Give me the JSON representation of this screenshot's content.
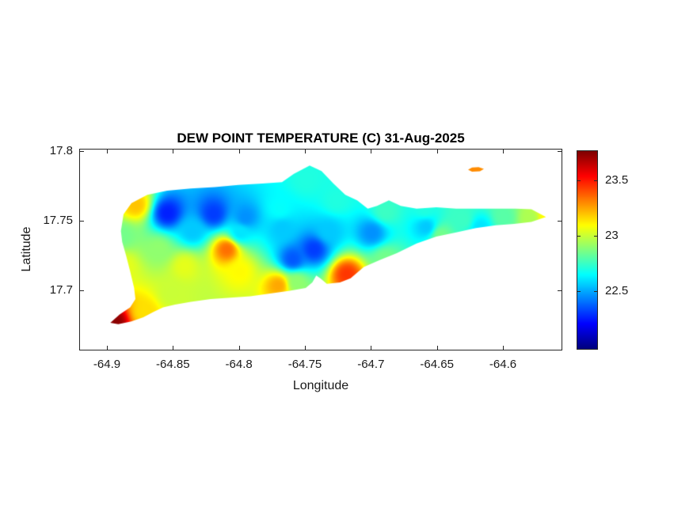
{
  "figure": {
    "background": "#ffffff",
    "axes_color": "#262626"
  },
  "chart_data": {
    "type": "heatmap",
    "title": "DEW POINT TEMPERATURE (C) 31-Aug-2025",
    "xlabel": "Longitude",
    "ylabel": "Latitude",
    "xlim": [
      -64.921,
      -64.555
    ],
    "ylim": [
      17.6565,
      17.8015
    ],
    "xticks": [
      -64.9,
      -64.85,
      -64.8,
      -64.75,
      -64.7,
      -64.65,
      -64.6
    ],
    "xtick_labels": [
      "-64.9",
      "-64.85",
      "-64.8",
      "-64.75",
      "-64.7",
      "-64.65",
      "-64.6"
    ],
    "yticks": [
      17.7,
      17.75,
      17.8
    ],
    "ytick_labels": [
      "17.7",
      "17.75",
      "17.8"
    ],
    "grid": false,
    "colorbar": {
      "position": "right",
      "colormap": "jet",
      "clim": [
        21.97,
        23.77
      ],
      "ticks": [
        22.5,
        23,
        23.5
      ],
      "tick_labels": [
        "22.5",
        "23",
        "23.5"
      ]
    },
    "island_outline": [
      [
        -64.89,
        17.743
      ],
      [
        -64.888,
        17.755
      ],
      [
        -64.882,
        17.763
      ],
      [
        -64.87,
        17.769
      ],
      [
        -64.855,
        17.772
      ],
      [
        -64.837,
        17.7735
      ],
      [
        -64.819,
        17.7745
      ],
      [
        -64.801,
        17.776
      ],
      [
        -64.783,
        17.777
      ],
      [
        -64.768,
        17.778
      ],
      [
        -64.759,
        17.784
      ],
      [
        -64.747,
        17.79
      ],
      [
        -64.738,
        17.786
      ],
      [
        -64.729,
        17.777
      ],
      [
        -64.72,
        17.769
      ],
      [
        -64.711,
        17.765
      ],
      [
        -64.703,
        17.759
      ],
      [
        -64.696,
        17.761
      ],
      [
        -64.687,
        17.765
      ],
      [
        -64.678,
        17.761
      ],
      [
        -64.666,
        17.759
      ],
      [
        -64.651,
        17.76
      ],
      [
        -64.636,
        17.759
      ],
      [
        -64.621,
        17.759
      ],
      [
        -64.606,
        17.759
      ],
      [
        -64.591,
        17.759
      ],
      [
        -64.579,
        17.7585
      ],
      [
        -64.568,
        17.753
      ],
      [
        -64.579,
        17.7495
      ],
      [
        -64.592,
        17.748
      ],
      [
        -64.606,
        17.747
      ],
      [
        -64.621,
        17.745
      ],
      [
        -64.636,
        17.742
      ],
      [
        -64.651,
        17.739
      ],
      [
        -64.666,
        17.734
      ],
      [
        -64.681,
        17.727
      ],
      [
        -64.694,
        17.722
      ],
      [
        -64.706,
        17.717
      ],
      [
        -64.716,
        17.709
      ],
      [
        -64.724,
        17.706
      ],
      [
        -64.734,
        17.705
      ],
      [
        -64.739,
        17.709
      ],
      [
        -64.742,
        17.711
      ],
      [
        -64.745,
        17.706
      ],
      [
        -64.75,
        17.702
      ],
      [
        -64.762,
        17.7
      ],
      [
        -64.777,
        17.698
      ],
      [
        -64.792,
        17.696
      ],
      [
        -64.807,
        17.695
      ],
      [
        -64.822,
        17.694
      ],
      [
        -64.837,
        17.692
      ],
      [
        -64.849,
        17.69
      ],
      [
        -64.858,
        17.688
      ],
      [
        -64.865,
        17.685
      ],
      [
        -64.873,
        17.681
      ],
      [
        -64.882,
        17.678
      ],
      [
        -64.892,
        17.676
      ],
      [
        -64.898,
        17.677
      ],
      [
        -64.891,
        17.683
      ],
      [
        -64.883,
        17.688
      ],
      [
        -64.879,
        17.694
      ],
      [
        -64.88,
        17.702
      ],
      [
        -64.883,
        17.714
      ],
      [
        -64.886,
        17.725
      ],
      [
        -64.889,
        17.735
      ]
    ],
    "islets": [
      [
        [
          -64.627,
          17.787
        ],
        [
          -64.624,
          17.7885
        ],
        [
          -64.619,
          17.7888
        ],
        [
          -64.615,
          17.7875
        ],
        [
          -64.618,
          17.7858
        ],
        [
          -64.624,
          17.7856
        ]
      ]
    ],
    "samples_format": "lon, lat, dew_point_c (estimated from color field)",
    "samples": [
      [
        -64.879,
        17.762,
        23.2
      ],
      [
        -64.889,
        17.74,
        22.85
      ],
      [
        -64.855,
        17.756,
        22.25
      ],
      [
        -64.82,
        17.7555,
        22.3
      ],
      [
        -64.796,
        17.753,
        22.45
      ],
      [
        -64.77,
        17.759,
        22.65
      ],
      [
        -64.862,
        17.73,
        22.9
      ],
      [
        -64.842,
        17.718,
        23.05
      ],
      [
        -64.81,
        17.73,
        23.35
      ],
      [
        -64.8,
        17.714,
        23.1
      ],
      [
        -64.852,
        17.698,
        23.0
      ],
      [
        -64.872,
        17.685,
        23.15
      ],
      [
        -64.896,
        17.6775,
        23.75
      ],
      [
        -64.76,
        17.723,
        22.35
      ],
      [
        -64.757,
        17.706,
        22.9
      ],
      [
        -64.771,
        17.704,
        23.25
      ],
      [
        -64.744,
        17.73,
        22.3
      ],
      [
        -64.733,
        17.743,
        22.55
      ],
      [
        -64.75,
        17.78,
        22.7
      ],
      [
        -64.719,
        17.712,
        23.45
      ],
      [
        -64.7,
        17.742,
        22.45
      ],
      [
        -64.69,
        17.757,
        22.75
      ],
      [
        -64.659,
        17.746,
        22.55
      ],
      [
        -64.631,
        17.751,
        22.75
      ],
      [
        -64.618,
        17.746,
        22.6
      ],
      [
        -64.6,
        17.753,
        22.8
      ],
      [
        -64.58,
        17.752,
        22.95
      ],
      [
        -64.568,
        17.753,
        23.1
      ],
      [
        -64.648,
        17.74,
        22.85
      ],
      [
        -64.727,
        17.765,
        22.7
      ],
      [
        -64.8,
        17.742,
        22.6
      ],
      [
        -64.836,
        17.743,
        22.55
      ],
      [
        -64.622,
        17.7872,
        23.3
      ],
      [
        -64.69,
        17.723,
        22.85
      ],
      [
        -64.66,
        17.759,
        22.7
      ],
      [
        -64.888,
        17.718,
        23.05
      ],
      [
        -64.768,
        17.745,
        22.55
      ]
    ]
  }
}
